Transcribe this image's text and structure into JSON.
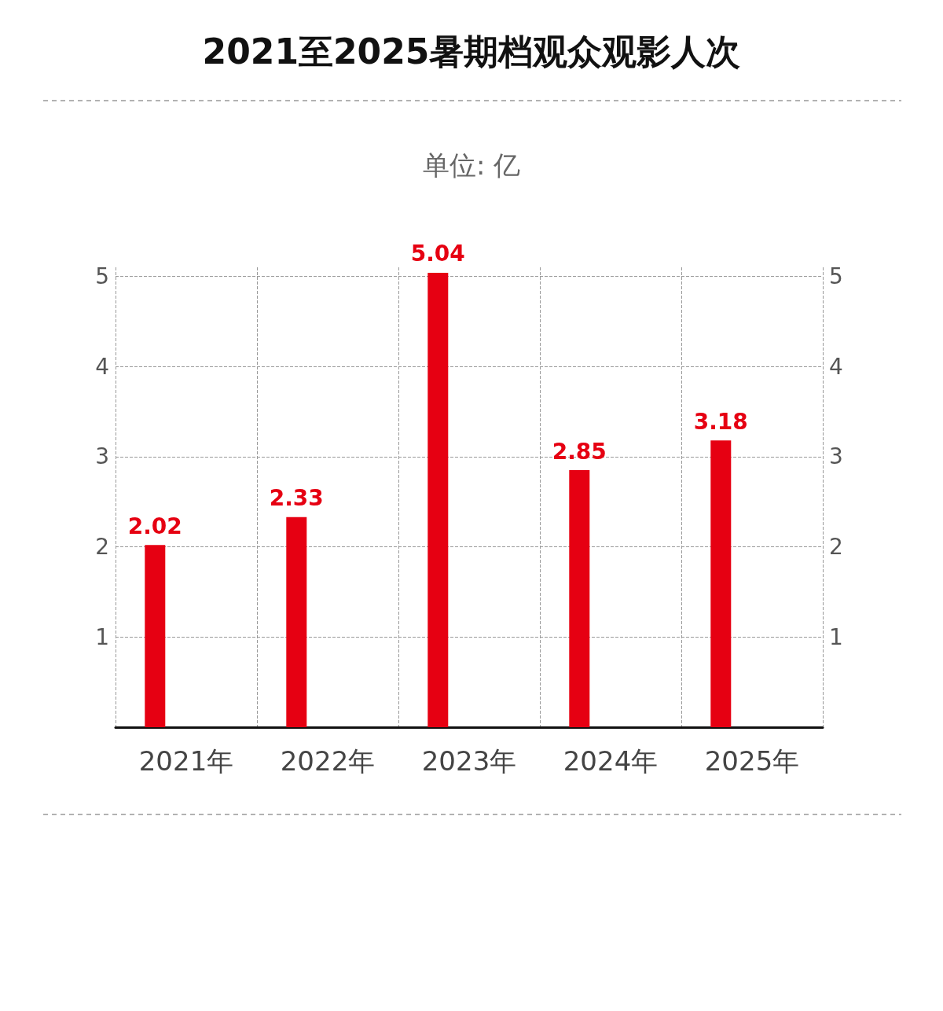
{
  "chart_data": {
    "type": "bar",
    "title": "2021至2025暑期档观众观影人次",
    "subtitle": "单位: 亿",
    "categories": [
      "2021年",
      "2022年",
      "2023年",
      "2024年",
      "2025年"
    ],
    "values": [
      2.02,
      2.33,
      5.04,
      2.85,
      3.18
    ],
    "color": "#e60012",
    "ylim": [
      0,
      5.1
    ],
    "yticks": [
      1,
      2,
      3,
      4,
      5
    ],
    "y2lim": [
      0,
      5.1
    ],
    "y2ticks": [
      1,
      2,
      3,
      4,
      5
    ],
    "data_labels": true,
    "grid": true
  }
}
